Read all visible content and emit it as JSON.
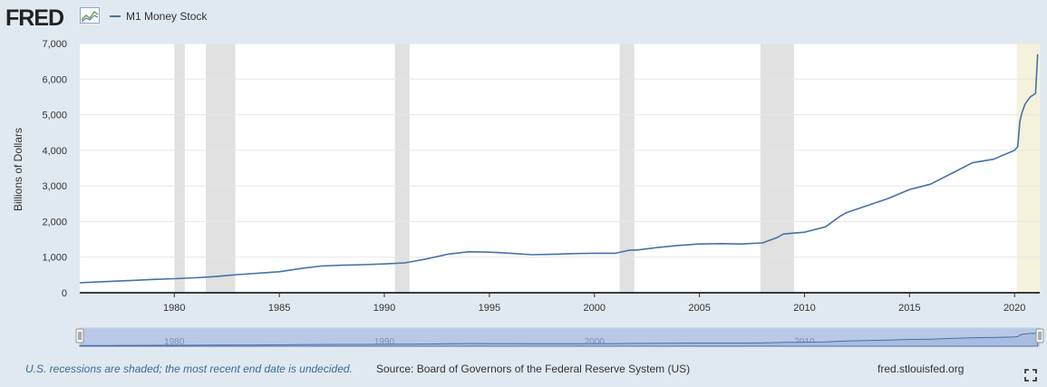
{
  "logo": {
    "text": "FRED"
  },
  "legend": {
    "series_name": "M1 Money Stock"
  },
  "footer": {
    "recession_note": "U.S. recessions are shaded; the most recent end date is undecided.",
    "source": "Source: Board of Governors of the Federal Reserve System (US)",
    "site": "fred.stlouisfed.org"
  },
  "colors": {
    "line": "#4572a7",
    "recession": "#e1e1e1",
    "current_recession": "#f5f2dc",
    "navigator": "#b8c8e6"
  },
  "chart_data": {
    "type": "line",
    "ylabel": "Billions of Dollars",
    "xlim": [
      1975.5,
      2021.2
    ],
    "ylim": [
      0,
      7000
    ],
    "y_ticks": [
      0,
      1000,
      2000,
      3000,
      4000,
      5000,
      6000,
      7000
    ],
    "y_tick_labels": [
      "0",
      "1,000",
      "2,000",
      "3,000",
      "4,000",
      "5,000",
      "6,000",
      "7,000"
    ],
    "x_ticks": [
      1980,
      1985,
      1990,
      1995,
      2000,
      2005,
      2010,
      2015,
      2020
    ],
    "x_tick_labels": [
      "1980",
      "1985",
      "1990",
      "1995",
      "2000",
      "2005",
      "2010",
      "2015",
      "2020"
    ],
    "grid": true,
    "legend_position": "top-left",
    "recessions": [
      {
        "start": 1980.0,
        "end": 1980.5
      },
      {
        "start": 1981.5,
        "end": 1982.9
      },
      {
        "start": 1990.5,
        "end": 1991.2
      },
      {
        "start": 2001.2,
        "end": 2001.9
      },
      {
        "start": 2007.9,
        "end": 2009.5
      }
    ],
    "current_recession_start": 2020.1,
    "navigator_ticks": [
      1980,
      1990,
      2000,
      2010,
      2020
    ],
    "navigator_tick_labels": [
      "1980",
      "1990",
      "2000",
      "2010",
      "2020"
    ],
    "series": [
      {
        "name": "M1 Money Stock",
        "x": [
          1975.5,
          1976,
          1977,
          1978,
          1979,
          1980,
          1981,
          1982,
          1983,
          1984,
          1985,
          1986,
          1987,
          1988,
          1989,
          1990,
          1991,
          1992,
          1993,
          1994,
          1995,
          1996,
          1997,
          1998,
          1999,
          2000,
          2001,
          2001.7,
          2002,
          2003,
          2004,
          2005,
          2006,
          2007,
          2008,
          2008.7,
          2009,
          2010,
          2011,
          2011.7,
          2012,
          2013,
          2014,
          2015,
          2016,
          2017,
          2018,
          2019,
          2020.0,
          2020.15,
          2020.25,
          2020.35,
          2020.5,
          2020.75,
          2021.0,
          2021.1
        ],
        "y": [
          280,
          295,
          320,
          345,
          375,
          395,
          420,
          455,
          510,
          550,
          590,
          680,
          750,
          775,
          790,
          810,
          840,
          950,
          1080,
          1150,
          1140,
          1110,
          1070,
          1080,
          1100,
          1110,
          1110,
          1200,
          1200,
          1270,
          1330,
          1370,
          1380,
          1370,
          1400,
          1550,
          1650,
          1700,
          1850,
          2150,
          2250,
          2450,
          2650,
          2900,
          3050,
          3350,
          3650,
          3750,
          4000,
          4100,
          4800,
          5050,
          5300,
          5500,
          5600,
          6700
        ]
      }
    ]
  }
}
